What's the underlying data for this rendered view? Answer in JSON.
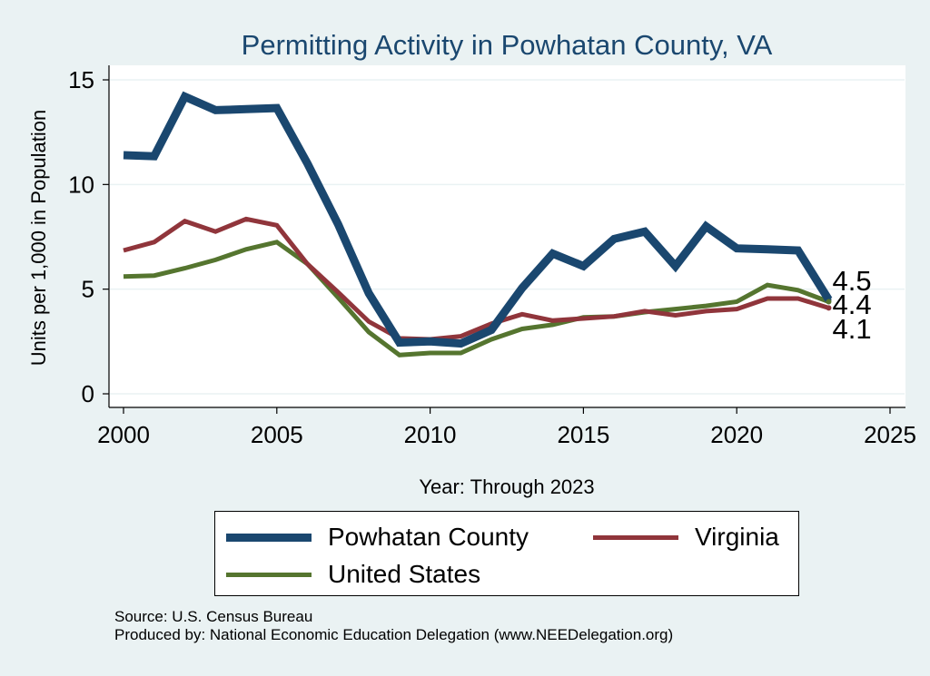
{
  "chart_data": {
    "type": "line",
    "title": "Permitting Activity in Powhatan County, VA",
    "xlabel": "Year: Through 2023",
    "ylabel": "Units per 1,000 in Population",
    "xlim": [
      2000,
      2025
    ],
    "ylim": [
      0,
      15
    ],
    "xticks": [
      2000,
      2005,
      2010,
      2015,
      2020,
      2025
    ],
    "yticks": [
      0,
      5,
      10,
      15
    ],
    "grid": true,
    "legend_position": "bottom",
    "x": [
      2000,
      2001,
      2002,
      2003,
      2004,
      2005,
      2006,
      2007,
      2008,
      2009,
      2010,
      2011,
      2012,
      2013,
      2014,
      2015,
      2016,
      2017,
      2018,
      2019,
      2020,
      2021,
      2022,
      2023
    ],
    "series": [
      {
        "name": "Powhatan County",
        "color": "#1A476F",
        "end_label": "4.5",
        "values": [
          11.4,
          11.35,
          14.2,
          13.55,
          13.6,
          13.65,
          11.0,
          8.1,
          4.8,
          2.45,
          2.5,
          2.4,
          3.05,
          5.05,
          6.7,
          6.1,
          7.4,
          7.75,
          6.1,
          8.0,
          6.95,
          6.9,
          6.85,
          4.5
        ]
      },
      {
        "name": "Virginia",
        "color": "#90353B",
        "end_label": "4.1",
        "values": [
          6.85,
          7.25,
          8.25,
          7.75,
          8.35,
          8.05,
          6.2,
          4.85,
          3.45,
          2.65,
          2.6,
          2.75,
          3.35,
          3.8,
          3.5,
          3.6,
          3.7,
          3.95,
          3.75,
          3.95,
          4.05,
          4.55,
          4.55,
          4.1
        ]
      },
      {
        "name": "United States",
        "color": "#55752F",
        "end_label": "4.4",
        "values": [
          5.6,
          5.65,
          6.0,
          6.4,
          6.9,
          7.25,
          6.2,
          4.6,
          2.95,
          1.85,
          1.95,
          1.95,
          2.6,
          3.1,
          3.3,
          3.65,
          3.7,
          3.9,
          4.05,
          4.2,
          4.4,
          5.2,
          4.95,
          4.4
        ]
      }
    ]
  },
  "footer": {
    "source": "Source: U.S. Census Bureau",
    "produced": "Produced by: National Economic Education Delegation (www.NEEDelegation.org)"
  }
}
